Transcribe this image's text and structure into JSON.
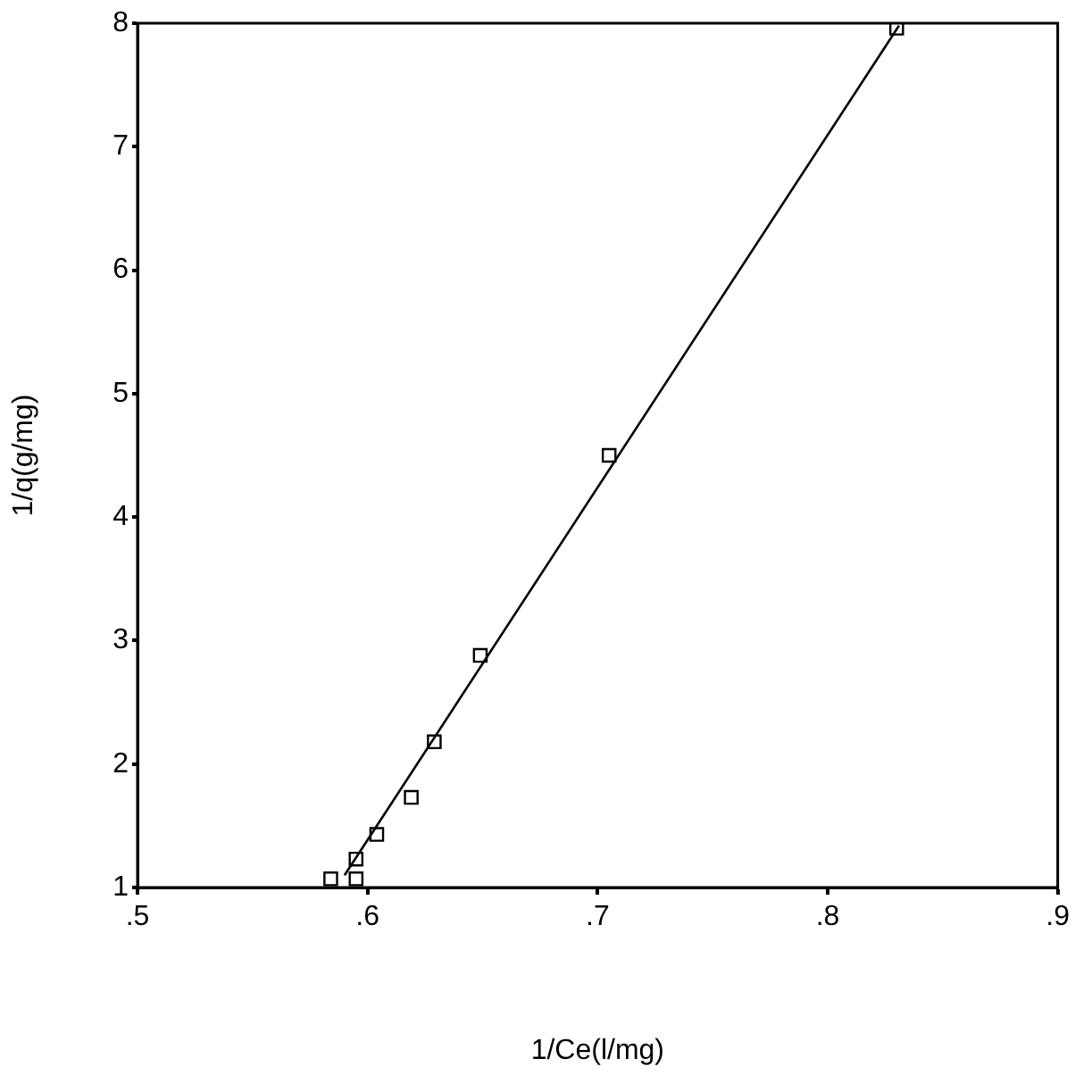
{
  "chart_data": {
    "type": "scatter",
    "xlabel": "1/Ce(l/mg)",
    "ylabel": "1/q(g/mg)",
    "grid": false,
    "legend": false,
    "xlim": [
      0.5,
      0.9
    ],
    "xticks": [
      {
        "value": 0.5,
        "label": ".5"
      },
      {
        "value": 0.6,
        "label": ".6"
      },
      {
        "value": 0.7,
        "label": ".7"
      },
      {
        "value": 0.8,
        "label": ".8"
      },
      {
        "value": 0.9,
        "label": ".9"
      }
    ],
    "ylim": [
      1,
      8
    ],
    "yticks": [
      1,
      2,
      3,
      4,
      5,
      6,
      7,
      8
    ],
    "series": [
      {
        "marker": "square",
        "color": "#000000",
        "x": [
          0.584,
          0.595,
          0.595,
          0.604,
          0.619,
          0.629,
          0.649,
          0.705,
          0.83
        ],
        "values": [
          1.07,
          1.07,
          1.23,
          1.43,
          1.73,
          2.18,
          2.88,
          4.5,
          7.96
        ]
      },
      {
        "type": "line",
        "marker": "none",
        "color": "#000000",
        "x": [
          0.59,
          0.831
        ],
        "values": [
          1.1,
          7.98
        ]
      }
    ]
  }
}
